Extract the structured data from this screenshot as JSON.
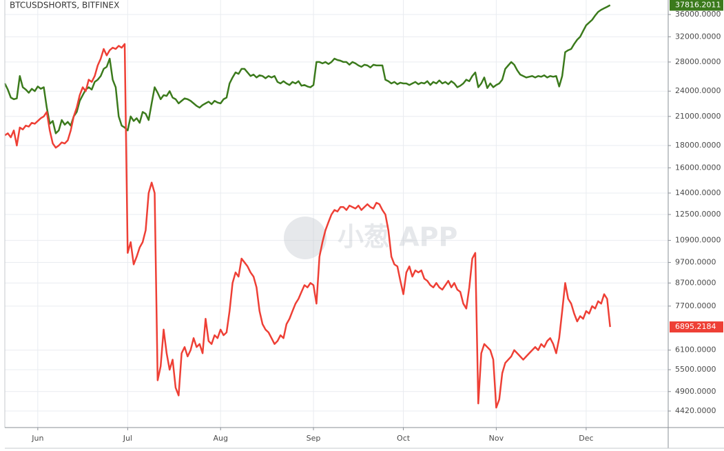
{
  "chart_data": {
    "type": "line",
    "title": "BTCUSDSHORTS, BITFINEX",
    "watermark": "小葱 APP",
    "ylog": true,
    "grid": true,
    "ylim": [
      4050,
      38870
    ],
    "yticks": [
      {
        "value": 4420,
        "label": "4420.0000"
      },
      {
        "value": 4900,
        "label": "4900.0000"
      },
      {
        "value": 5500,
        "label": "5500.0000"
      },
      {
        "value": 6100,
        "label": "6100.0000"
      },
      {
        "value": 7700,
        "label": "7700.0000"
      },
      {
        "value": 8700,
        "label": "8700.0000"
      },
      {
        "value": 9700,
        "label": "9700.0000"
      },
      {
        "value": 10900,
        "label": "10900.0000"
      },
      {
        "value": 12500,
        "label": "12500.0000"
      },
      {
        "value": 14000,
        "label": "14000.0000"
      },
      {
        "value": 16000,
        "label": "16000.0000"
      },
      {
        "value": 18000,
        "label": "18000.0000"
      },
      {
        "value": 21000,
        "label": "21000.0000"
      },
      {
        "value": 24000,
        "label": "24000.0000"
      },
      {
        "value": 28000,
        "label": "28000.0000"
      },
      {
        "value": 32000,
        "label": "32000.0000"
      },
      {
        "value": 36000,
        "label": "36000.0000"
      }
    ],
    "categories": [
      null,
      null,
      null,
      null,
      null,
      null,
      null,
      null,
      null,
      null,
      null,
      "Jun",
      null,
      null,
      null,
      null,
      null,
      null,
      null,
      null,
      null,
      null,
      null,
      null,
      null,
      null,
      null,
      null,
      null,
      null,
      null,
      null,
      null,
      null,
      null,
      null,
      null,
      null,
      null,
      null,
      null,
      "Jul",
      null,
      null,
      null,
      null,
      null,
      null,
      null,
      null,
      null,
      null,
      null,
      null,
      null,
      null,
      null,
      null,
      null,
      null,
      null,
      null,
      null,
      null,
      null,
      null,
      null,
      null,
      null,
      null,
      null,
      null,
      "Aug",
      null,
      null,
      null,
      null,
      null,
      null,
      null,
      null,
      null,
      null,
      null,
      null,
      null,
      null,
      null,
      null,
      null,
      null,
      null,
      null,
      null,
      null,
      null,
      null,
      null,
      null,
      null,
      null,
      null,
      null,
      "Sep",
      null,
      null,
      null,
      null,
      null,
      null,
      null,
      null,
      null,
      null,
      null,
      null,
      null,
      null,
      null,
      null,
      null,
      null,
      null,
      null,
      null,
      null,
      null,
      null,
      null,
      null,
      null,
      null,
      null,
      "Oct",
      null,
      null,
      null,
      null,
      null,
      null,
      null,
      null,
      null,
      null,
      null,
      null,
      null,
      null,
      null,
      null,
      null,
      null,
      null,
      null,
      null,
      null,
      null,
      null,
      null,
      null,
      null,
      null,
      null,
      null,
      "Nov",
      null,
      null,
      null,
      null,
      null,
      null,
      null,
      null,
      null,
      null,
      null,
      null,
      null,
      null,
      null,
      null,
      null,
      null,
      null,
      null,
      null,
      null,
      null,
      null,
      null,
      null,
      null,
      null,
      null,
      "Dec",
      null,
      null,
      null,
      null,
      null,
      null,
      null,
      null
    ],
    "series": [
      {
        "color": "#3b7a1c",
        "values": [
          25000,
          24200,
          23200,
          23000,
          23100,
          26000,
          24500,
          24200,
          23800,
          24300,
          24000,
          24600,
          24300,
          24500,
          22000,
          20200,
          20500,
          19200,
          19500,
          20600,
          20100,
          20400,
          20000,
          21000,
          21500,
          22800,
          23500,
          24200,
          24500,
          24200,
          25200,
          25500,
          26000,
          27000,
          27300,
          28500,
          25500,
          24500,
          21000,
          20000,
          19800,
          19500,
          21000,
          20500,
          20800,
          20300,
          21500,
          21300,
          20600,
          22500,
          24500,
          23800,
          23000,
          23500,
          23400,
          24000,
          23200,
          23000,
          22500,
          22800,
          23100,
          23000,
          22800,
          22500,
          22200,
          22000,
          22300,
          22500,
          22700,
          22400,
          22800,
          22600,
          22500,
          23000,
          23200,
          25000,
          25800,
          26500,
          26300,
          27000,
          27000,
          26500,
          26000,
          26200,
          25800,
          26100,
          26000,
          25700,
          26000,
          25800,
          26000,
          25200,
          25000,
          25300,
          25000,
          24800,
          25200,
          25000,
          25300,
          24700,
          24800,
          24600,
          24500,
          24800,
          28000,
          28000,
          27800,
          28000,
          27700,
          28000,
          28500,
          28300,
          28200,
          28000,
          28000,
          27600,
          28000,
          27800,
          27500,
          27300,
          27600,
          27500,
          27200,
          27600,
          27500,
          27500,
          27500,
          25500,
          25300,
          25000,
          25200,
          24900,
          25100,
          25000,
          25000,
          24800,
          25000,
          25200,
          24900,
          25100,
          25000,
          25300,
          24800,
          25200,
          25000,
          25400,
          25000,
          25200,
          24900,
          25300,
          25000,
          24500,
          24700,
          25000,
          25500,
          25300,
          26000,
          26500,
          24500,
          25000,
          25800,
          24400,
          25000,
          24500,
          24800,
          25000,
          25500,
          27000,
          27500,
          28000,
          27600,
          26800,
          26200,
          26000,
          25800,
          25900,
          26000,
          25800,
          26000,
          25900,
          26100,
          25800,
          26000,
          25900,
          26000,
          24600,
          26000,
          29500,
          29800,
          30000,
          30800,
          31500,
          32000,
          33000,
          34000,
          34500,
          35000,
          35800,
          36500,
          36900,
          37200,
          37500,
          37816.2011
        ]
      },
      {
        "color": "#ee3f35",
        "values": [
          19000,
          19200,
          18800,
          19500,
          18000,
          19800,
          19600,
          20000,
          19900,
          20300,
          20200,
          20500,
          20800,
          21000,
          21500,
          19500,
          18200,
          17800,
          18000,
          18300,
          18200,
          18500,
          19500,
          21000,
          22000,
          23500,
          24500,
          24000,
          25500,
          25200,
          26000,
          27500,
          28500,
          30000,
          29000,
          29800,
          30200,
          30000,
          30500,
          30200,
          30800,
          10200,
          10800,
          9600,
          10000,
          10500,
          10800,
          11500,
          14000,
          14800,
          14000,
          5200,
          5600,
          6800,
          6000,
          5500,
          5800,
          5000,
          4800,
          6000,
          6200,
          5900,
          6100,
          6500,
          6200,
          6300,
          6000,
          7200,
          6400,
          6300,
          6600,
          6500,
          6800,
          6600,
          6700,
          7500,
          8700,
          9200,
          9000,
          9900,
          9700,
          9500,
          9200,
          9000,
          8500,
          7500,
          7000,
          6800,
          6700,
          6500,
          6300,
          6400,
          6600,
          6500,
          7000,
          7200,
          7500,
          7800,
          8000,
          8300,
          8600,
          8500,
          8700,
          8600,
          7800,
          10000,
          10800,
          11500,
          12000,
          12500,
          12800,
          12700,
          13000,
          13000,
          12800,
          13100,
          13000,
          12900,
          13100,
          12800,
          13000,
          13200,
          13000,
          12900,
          13300,
          13200,
          12800,
          12500,
          11500,
          10000,
          9600,
          9500,
          8800,
          8200,
          9200,
          9500,
          9000,
          9300,
          9200,
          9300,
          8900,
          8800,
          8600,
          8500,
          8700,
          8500,
          8400,
          8600,
          8800,
          8500,
          8700,
          8400,
          8300,
          7800,
          7600,
          8500,
          9900,
          10200,
          4600,
          6000,
          6300,
          6200,
          6100,
          5800,
          4500,
          4700,
          5400,
          5700,
          5800,
          5900,
          6100,
          6000,
          5900,
          5800,
          5900,
          6000,
          6100,
          6200,
          6100,
          6300,
          6200,
          6400,
          6500,
          6300,
          6000,
          6500,
          7500,
          8700,
          8000,
          7800,
          7400,
          7100,
          7300,
          7200,
          7500,
          7400,
          7700,
          7600,
          7900,
          7800,
          8200,
          8000,
          6895.2184
        ]
      }
    ]
  }
}
